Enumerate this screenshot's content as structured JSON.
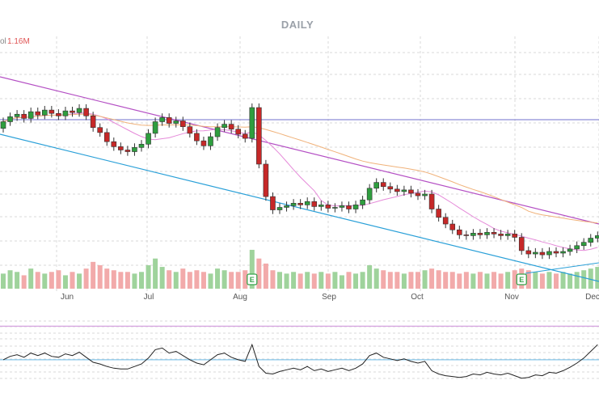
{
  "header": {
    "title": "DAILY",
    "volume_label": "ol",
    "volume_value": "1.16M"
  },
  "colors": {
    "up": "#2e9e3e",
    "down": "#c62828",
    "volume_up": "#9fd39c",
    "volume_down": "#f2aaaa",
    "trend_upper": "#b44fc4",
    "trend_lower": "#2aa0d8",
    "ma_fast": "#e58ad9",
    "ma_slow": "#f0b27a",
    "resistance": "#8e8ed6",
    "oscillator": "#222222",
    "osc_upper_band": "#d6a3e0",
    "osc_lower_band": "#86c5e8"
  },
  "chart_data": {
    "type": "candlestick",
    "title": "DAILY",
    "months": [
      "Jun",
      "Jul",
      "Aug",
      "Sep",
      "Oct",
      "Nov",
      "Dec"
    ],
    "earnings_markers": [
      "E",
      "E"
    ],
    "closes": [
      63.2,
      63.8,
      64.1,
      63.6,
      64.4,
      64.0,
      64.6,
      64.2,
      63.9,
      64.5,
      64.3,
      64.8,
      63.9,
      62.5,
      61.9,
      60.8,
      60.2,
      59.8,
      59.6,
      60.1,
      60.5,
      61.8,
      63.2,
      63.7,
      63.0,
      63.3,
      62.6,
      61.8,
      60.9,
      60.3,
      61.4,
      62.5,
      62.9,
      62.3,
      61.7,
      61.2,
      64.9,
      58.1,
      54.2,
      52.6,
      52.9,
      53.1,
      53.4,
      53.2,
      53.6,
      53.0,
      53.2,
      52.8,
      52.9,
      53.1,
      52.7,
      53.2,
      53.8,
      55.2,
      55.9,
      55.4,
      55.1,
      54.8,
      55.0,
      54.6,
      54.3,
      54.5,
      52.7,
      51.7,
      50.9,
      50.2,
      49.6,
      49.5,
      49.8,
      49.6,
      49.9,
      49.7,
      49.5,
      49.7,
      49.3,
      47.7,
      47.3,
      47.5,
      47.2,
      47.6,
      47.4,
      47.6,
      47.9,
      48.3,
      48.7,
      49.2,
      49.5
    ],
    "opens": [
      62.4,
      63.2,
      63.8,
      64.1,
      63.6,
      64.4,
      64.0,
      64.6,
      64.2,
      63.9,
      64.5,
      64.3,
      64.8,
      63.9,
      62.5,
      61.9,
      60.8,
      60.2,
      59.8,
      59.6,
      60.1,
      60.5,
      61.8,
      63.2,
      63.7,
      63.0,
      63.3,
      62.6,
      61.8,
      60.9,
      60.3,
      61.4,
      62.5,
      62.9,
      62.3,
      61.7,
      61.2,
      64.9,
      58.1,
      54.2,
      52.6,
      52.9,
      53.1,
      53.4,
      53.2,
      53.6,
      53.0,
      53.2,
      52.8,
      52.9,
      53.1,
      52.7,
      53.2,
      53.8,
      55.2,
      55.9,
      55.4,
      55.1,
      54.8,
      55.0,
      54.6,
      54.3,
      54.5,
      52.7,
      51.7,
      50.9,
      50.2,
      49.6,
      49.5,
      49.8,
      49.6,
      49.9,
      49.7,
      49.5,
      49.7,
      49.3,
      47.7,
      47.3,
      47.5,
      47.2,
      47.6,
      47.4,
      47.6,
      47.9,
      48.3,
      48.7,
      49.2
    ],
    "volumes": [
      0.45,
      0.55,
      0.5,
      0.4,
      0.6,
      0.5,
      0.45,
      0.5,
      0.55,
      0.4,
      0.5,
      0.45,
      0.6,
      0.8,
      0.7,
      0.6,
      0.55,
      0.5,
      0.5,
      0.45,
      0.5,
      0.7,
      0.9,
      0.65,
      0.55,
      0.5,
      0.6,
      0.5,
      0.55,
      0.5,
      0.45,
      0.6,
      0.55,
      0.5,
      0.5,
      0.55,
      1.16,
      0.9,
      0.75,
      0.55,
      0.5,
      0.45,
      0.5,
      0.45,
      0.5,
      0.45,
      0.5,
      0.45,
      0.5,
      0.4,
      0.5,
      0.45,
      0.5,
      0.7,
      0.6,
      0.55,
      0.5,
      0.5,
      0.45,
      0.5,
      0.5,
      0.55,
      0.6,
      0.55,
      0.5,
      0.5,
      0.45,
      0.5,
      0.45,
      0.5,
      0.45,
      0.5,
      0.45,
      0.5,
      0.55,
      0.6,
      0.55,
      0.5,
      0.45,
      0.5,
      0.45,
      0.5,
      0.45,
      0.5,
      0.55,
      0.6,
      0.65
    ],
    "oscillator": [
      30,
      34,
      36,
      33,
      38,
      35,
      38,
      34,
      33,
      37,
      35,
      39,
      33,
      27,
      25,
      22,
      20,
      19,
      19,
      22,
      25,
      32,
      42,
      44,
      38,
      40,
      35,
      30,
      26,
      24,
      30,
      36,
      38,
      33,
      30,
      28,
      48,
      22,
      14,
      13,
      16,
      18,
      20,
      18,
      22,
      17,
      19,
      16,
      18,
      20,
      17,
      20,
      25,
      35,
      38,
      33,
      31,
      29,
      31,
      28,
      26,
      28,
      17,
      13,
      11,
      10,
      9,
      10,
      13,
      12,
      15,
      13,
      12,
      14,
      11,
      8,
      9,
      12,
      11,
      15,
      14,
      17,
      21,
      26,
      32,
      40,
      48
    ],
    "price_range": [
      44,
      72
    ],
    "volume_range": [
      0,
      1.4
    ],
    "oscillator_range": [
      0,
      80
    ],
    "grid": true
  }
}
